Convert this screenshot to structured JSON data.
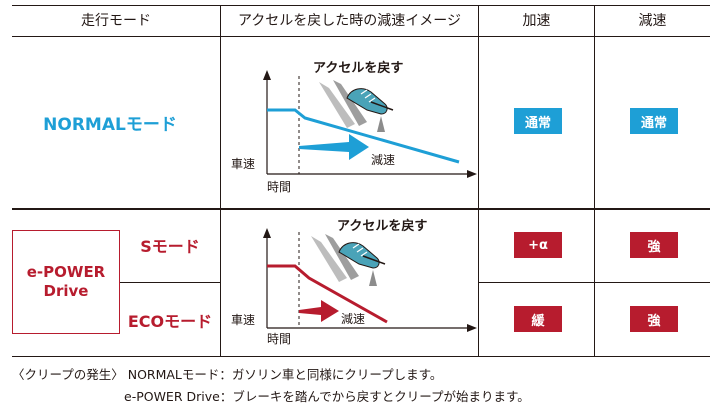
{
  "colors": {
    "blue": "#1e9fd6",
    "red": "#b71c2e",
    "text": "#231815"
  },
  "header": {
    "mode": "走行モード",
    "image": "アクセルを戻した時の減速イメージ",
    "accel": "加速",
    "decel": "減速"
  },
  "normal": {
    "mode_label": "NORMALモード",
    "accel_badge": "通常",
    "decel_badge": "通常",
    "diagram": {
      "release_label": "アクセルを戻す",
      "speed_label": "車速",
      "time_label": "時間",
      "decel_label": "減速"
    }
  },
  "epower": {
    "box_line1": "e-POWER",
    "box_line2": "Drive",
    "s_mode_label": "Sモード",
    "eco_mode_label": "ECOモード",
    "s_accel_badge": "+α",
    "s_decel_badge": "強",
    "eco_accel_badge": "緩",
    "eco_decel_badge": "強",
    "diagram": {
      "release_label": "アクセルを戻す",
      "speed_label": "車速",
      "time_label": "時間",
      "decel_label": "減速"
    }
  },
  "footer": {
    "line1": "〈クリープの発生〉 NORMALモード：ガソリン車と同様にクリープします。",
    "line2": "e-POWER Drive：ブレーキを踏んでから戻すとクリープが始まります。"
  }
}
